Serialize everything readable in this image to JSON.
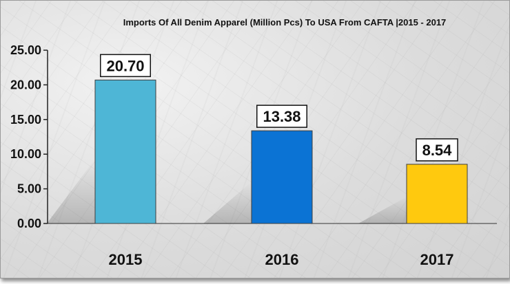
{
  "chart_data": {
    "type": "bar",
    "title": "Imports Of All Denim Apparel (Million Pcs) To USA From CAFTA |2015 - 2017",
    "categories": [
      "2015",
      "2016",
      "2017"
    ],
    "values": [
      20.7,
      13.38,
      8.54
    ],
    "value_labels": [
      "20.70",
      "13.38",
      "8.54"
    ],
    "bar_colors": [
      "#4eb6d6",
      "#0b73d4",
      "#ffc90e"
    ],
    "ylim": [
      0,
      25
    ],
    "yticks": [
      0,
      5,
      10,
      15,
      20,
      25
    ],
    "ytick_labels": [
      "0.00",
      "5.00",
      "10.00",
      "15.00",
      "20.00",
      "25.00"
    ],
    "grid": false,
    "legend": "none"
  }
}
